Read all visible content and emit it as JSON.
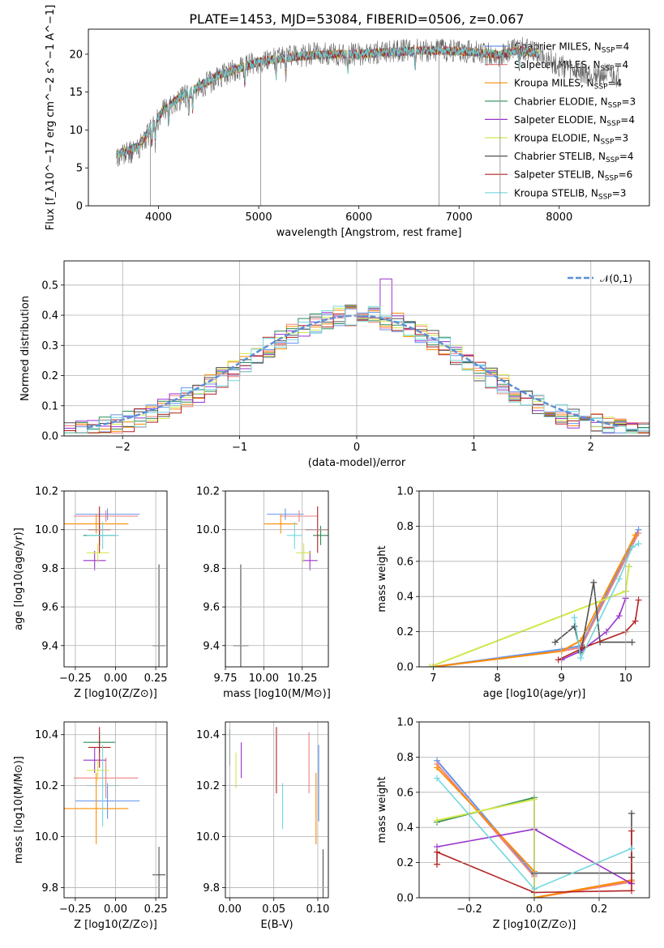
{
  "title": "PLATE=1453, MJD=53084, FIBERID=0506, z=0.067",
  "colors": {
    "Chabrier MILES": "#6495ed",
    "Salpeter MILES": "#f08080",
    "Kroupa MILES": "#ff8c00",
    "Chabrier ELODIE": "#2e8b57",
    "Salpeter ELODIE": "#9932cc",
    "Kroupa ELODIE": "#d4e84a",
    "Chabrier STELIB": "#505050",
    "Salpeter STELIB": "#b22222",
    "Kroupa STELIB": "#70d8e0"
  },
  "chart_data": [
    {
      "id": "spectrum",
      "type": "line",
      "xlabel": "wavelength [Angstrom, rest frame]",
      "ylabel": "Flux [f_λ10^−17 erg cm^−2 s^−1 A^−1]",
      "xlim": [
        3300,
        8900
      ],
      "ylim": [
        0,
        23.3
      ],
      "xticks": [
        4000,
        5000,
        6000,
        7000,
        8000
      ],
      "yticks": [
        0,
        5,
        10,
        15,
        20
      ],
      "grid": false,
      "legend": "top-right",
      "legend_entries": [
        {
          "label": "Chabrier MILES, N",
          "sub": "SSP",
          "val": "=4",
          "color": "#6495ed"
        },
        {
          "label": "Salpeter MILES, N",
          "sub": "SSP",
          "val": "=4",
          "color": "#f08080"
        },
        {
          "label": "Kroupa MILES, N",
          "sub": "SSP",
          "val": "=4",
          "color": "#ff8c00"
        },
        {
          "label": "Chabrier ELODIE, N",
          "sub": "SSP",
          "val": "=3",
          "color": "#2e8b57"
        },
        {
          "label": "Salpeter ELODIE, N",
          "sub": "SSP",
          "val": "=4",
          "color": "#9932cc"
        },
        {
          "label": "Kroupa ELODIE, N",
          "sub": "SSP",
          "val": "=3",
          "color": "#d4e84a"
        },
        {
          "label": "Chabrier STELIB, N",
          "sub": "SSP",
          "val": "=4",
          "color": "#505050"
        },
        {
          "label": "Salpeter STELIB, N",
          "sub": "SSP",
          "val": "=6",
          "color": "#b22222"
        },
        {
          "label": "Kroupa STELIB, N",
          "sub": "SSP",
          "val": "=3",
          "color": "#70d8e0"
        }
      ],
      "data_envelope": {
        "x": [
          3580,
          3800,
          3950,
          4050,
          4200,
          4400,
          4600,
          4800,
          5000,
          5200,
          5400,
          5600,
          5800,
          6000,
          6200,
          6400,
          6600,
          6800,
          7000,
          7200,
          7400,
          7600,
          7800,
          8000,
          8200,
          8400,
          8600
        ],
        "y": [
          6.5,
          7.5,
          10.5,
          12.5,
          14.0,
          15.5,
          17.0,
          18.0,
          19.0,
          19.5,
          19.8,
          20.0,
          20.0,
          20.0,
          20.2,
          20.4,
          20.6,
          20.5,
          20.5,
          20.2,
          19.8,
          20.8,
          20.0,
          18.5,
          17.5,
          17.3,
          17.0
        ]
      },
      "model_envelope": {
        "x": [
          3580,
          3800,
          3950,
          4050,
          4200,
          4400,
          4600,
          4800,
          5000,
          5200,
          5400,
          5600,
          5800,
          6000,
          6200,
          6400,
          6600,
          6800,
          7000,
          7200,
          7400,
          7600,
          7800
        ],
        "y": [
          6.8,
          7.8,
          10.8,
          12.6,
          14.2,
          15.7,
          17.2,
          18.1,
          19.0,
          19.4,
          19.7,
          19.9,
          20.0,
          20.0,
          20.2,
          20.3,
          20.5,
          20.5,
          20.4,
          20.2,
          19.9,
          20.6,
          20.0
        ]
      }
    },
    {
      "id": "residuals",
      "type": "histogram",
      "xlabel": "(data-model)/error",
      "ylabel": "Normed distribution",
      "xlim": [
        -2.5,
        2.5
      ],
      "ylim": [
        0,
        0.58
      ],
      "xticks": [
        -2,
        -1,
        0,
        1,
        2
      ],
      "yticks": [
        0.0,
        0.1,
        0.2,
        0.3,
        0.4,
        0.5
      ],
      "grid": true,
      "legend": "top-right",
      "legend_label": "𝒩(0,1)",
      "bin_width": 0.1
    },
    {
      "id": "age-vs-Z",
      "type": "errorbar",
      "xlabel": "Z [log10(Z/Z⊙)]",
      "ylabel": "age  [log10(age/yr)]",
      "xlim": [
        -0.32,
        0.32
      ],
      "ylim": [
        9.29,
        10.2
      ],
      "xticks": [
        -0.25,
        0.0,
        0.25
      ],
      "yticks": [
        9.4,
        9.6,
        9.8,
        10.0,
        10.2
      ],
      "grid": true,
      "points": [
        {
          "m": "Chabrier MILES",
          "x": -0.05,
          "xe": 0.2,
          "y": 10.08,
          "ye": 0.03
        },
        {
          "m": "Salpeter MILES",
          "x": -0.06,
          "xe": 0.2,
          "y": 10.07,
          "ye": 0.03
        },
        {
          "m": "Kroupa MILES",
          "x": -0.12,
          "xe": 0.2,
          "y": 10.03,
          "ye": 0.05
        },
        {
          "m": "Chabrier ELODIE",
          "x": -0.1,
          "xe": 0.1,
          "y": 9.97,
          "ye": 0.05
        },
        {
          "m": "Salpeter ELODIE",
          "x": -0.13,
          "xe": 0.07,
          "y": 9.84,
          "ye": 0.05
        },
        {
          "m": "Kroupa ELODIE",
          "x": -0.11,
          "xe": 0.07,
          "y": 9.88,
          "ye": 0.05
        },
        {
          "m": "Chabrier STELIB",
          "x": 0.27,
          "xe": 0.04,
          "y": 9.4,
          "ye": 0.42
        },
        {
          "m": "Salpeter STELIB",
          "x": -0.1,
          "xe": 0.07,
          "y": 10.0,
          "ye": 0.12
        },
        {
          "m": "Kroupa STELIB",
          "x": -0.08,
          "xe": 0.1,
          "y": 9.97,
          "ye": 0.07
        }
      ]
    },
    {
      "id": "age-vs-mass",
      "type": "errorbar",
      "xlabel": "mass [log10(M/M⊙)]",
      "ylabel": "",
      "xlim": [
        9.75,
        10.42
      ],
      "ylim": [
        9.29,
        10.2
      ],
      "xticks": [
        9.75,
        10.0,
        10.25
      ],
      "yticks": [
        9.4,
        9.6,
        9.8,
        10.0,
        10.2
      ],
      "grid": true,
      "points": [
        {
          "m": "Chabrier MILES",
          "x": 10.14,
          "xe": 0.12,
          "y": 10.08,
          "ye": 0.03
        },
        {
          "m": "Salpeter MILES",
          "x": 10.23,
          "xe": 0.12,
          "y": 10.07,
          "ye": 0.03
        },
        {
          "m": "Kroupa MILES",
          "x": 10.11,
          "xe": 0.11,
          "y": 10.03,
          "ye": 0.05
        },
        {
          "m": "Chabrier ELODIE",
          "x": 10.37,
          "xe": 0.05,
          "y": 9.97,
          "ye": 0.05
        },
        {
          "m": "Salpeter ELODIE",
          "x": 10.3,
          "xe": 0.05,
          "y": 9.84,
          "ye": 0.05
        },
        {
          "m": "Kroupa ELODIE",
          "x": 10.26,
          "xe": 0.05,
          "y": 9.88,
          "ye": 0.05
        },
        {
          "m": "Chabrier STELIB",
          "x": 9.85,
          "xe": 0.05,
          "y": 9.4,
          "ye": 0.42
        },
        {
          "m": "Salpeter STELIB",
          "x": 10.35,
          "xe": 0.08,
          "y": 10.0,
          "ye": 0.12
        },
        {
          "m": "Kroupa STELIB",
          "x": 10.2,
          "xe": 0.05,
          "y": 9.97,
          "ye": 0.07
        }
      ]
    },
    {
      "id": "massweight-vs-age",
      "type": "line",
      "xlabel": "age  [log10(age/yr)]",
      "ylabel": "mass weight",
      "xlim": [
        6.78,
        10.37
      ],
      "ylim": [
        0,
        1
      ],
      "xticks": [
        7,
        8,
        9,
        10
      ],
      "yticks": [
        0.0,
        0.2,
        0.4,
        0.6,
        0.8,
        1.0
      ],
      "grid": true,
      "series": [
        {
          "m": "Chabrier MILES",
          "x": [
            7.0,
            9.0,
            9.3,
            10.2
          ],
          "y": [
            0.0,
            0.1,
            0.12,
            0.78
          ]
        },
        {
          "m": "Salpeter MILES",
          "x": [
            7.0,
            9.0,
            9.3,
            10.2
          ],
          "y": [
            0.0,
            0.09,
            0.11,
            0.76
          ]
        },
        {
          "m": "Kroupa MILES",
          "x": [
            7.0,
            9.0,
            9.3,
            10.15
          ],
          "y": [
            0.0,
            0.09,
            0.15,
            0.75
          ]
        },
        {
          "m": "Chabrier ELODIE",
          "x": [
            6.95,
            10.0,
            10.05
          ],
          "y": [
            0.0,
            0.43,
            0.57
          ]
        },
        {
          "m": "Salpeter ELODIE",
          "x": [
            9.0,
            9.3,
            9.7,
            9.9,
            10.0
          ],
          "y": [
            0.04,
            0.09,
            0.2,
            0.29,
            0.39
          ]
        },
        {
          "m": "Kroupa ELODIE",
          "x": [
            6.95,
            10.0,
            10.05
          ],
          "y": [
            0.0,
            0.43,
            0.57
          ]
        },
        {
          "m": "Chabrier STELIB",
          "x": [
            8.9,
            9.2,
            9.3,
            9.5,
            9.6,
            10.1
          ],
          "y": [
            0.14,
            0.23,
            0.08,
            0.48,
            0.14,
            0.14
          ]
        },
        {
          "m": "Salpeter STELIB",
          "x": [
            8.95,
            9.35,
            10.0,
            10.15,
            10.2
          ],
          "y": [
            0.04,
            0.11,
            0.2,
            0.26,
            0.38
          ]
        },
        {
          "m": "Kroupa STELIB",
          "x": [
            9.2,
            9.3,
            9.9,
            10.1,
            10.2
          ],
          "y": [
            0.28,
            0.05,
            0.5,
            0.68,
            0.7
          ]
        }
      ]
    },
    {
      "id": "mass-vs-Z",
      "type": "errorbar",
      "xlabel": "Z [log10(Z/Z⊙)]",
      "ylabel": "mass [log10(M/M⊙)]",
      "xlim": [
        -0.32,
        0.32
      ],
      "ylim": [
        9.76,
        10.45
      ],
      "xticks": [
        -0.25,
        0.0,
        0.25
      ],
      "yticks": [
        9.8,
        10.0,
        10.2,
        10.4
      ],
      "grid": true,
      "points": [
        {
          "m": "Chabrier MILES",
          "x": -0.05,
          "xe": 0.2,
          "y": 10.14,
          "ye": 0.07
        },
        {
          "m": "Salpeter MILES",
          "x": -0.06,
          "xe": 0.2,
          "y": 10.23,
          "ye": 0.08
        },
        {
          "m": "Kroupa MILES",
          "x": -0.12,
          "xe": 0.2,
          "y": 10.11,
          "ye": 0.14
        },
        {
          "m": "Chabrier ELODIE",
          "x": -0.1,
          "xe": 0.1,
          "y": 10.37,
          "ye": 0.04
        },
        {
          "m": "Salpeter ELODIE",
          "x": -0.13,
          "xe": 0.07,
          "y": 10.3,
          "ye": 0.05
        },
        {
          "m": "Kroupa ELODIE",
          "x": -0.11,
          "xe": 0.07,
          "y": 10.26,
          "ye": 0.04
        },
        {
          "m": "Chabrier STELIB",
          "x": 0.27,
          "xe": 0.04,
          "y": 9.85,
          "ye": 0.11
        },
        {
          "m": "Salpeter STELIB",
          "x": -0.1,
          "xe": 0.07,
          "y": 10.35,
          "ye": 0.08
        },
        {
          "m": "Kroupa STELIB",
          "x": -0.08,
          "xe": 0.1,
          "y": 10.2,
          "ye": 0.16
        }
      ]
    },
    {
      "id": "mass-vs-EBV",
      "type": "errorbar",
      "xlabel": "E(B-V)",
      "ylabel": "",
      "xlim": [
        -0.005,
        0.112
      ],
      "ylim": [
        9.76,
        10.45
      ],
      "xticks": [
        0.0,
        0.05,
        0.1
      ],
      "yticks": [
        9.8,
        10.0,
        10.2,
        10.4
      ],
      "grid": true,
      "points": [
        {
          "m": "Chabrier MILES",
          "x": 0.101,
          "xe": 0,
          "y": 10.21,
          "ye": 0.15
        },
        {
          "m": "Salpeter MILES",
          "x": 0.09,
          "xe": 0,
          "y": 10.29,
          "ye": 0.12
        },
        {
          "m": "Kroupa MILES",
          "x": 0.098,
          "xe": 0,
          "y": 10.11,
          "ye": 0.14
        },
        {
          "m": "Chabrier ELODIE",
          "x": 0.0,
          "xe": 0,
          "y": 10.35,
          "ye": 0.07
        },
        {
          "m": "Salpeter ELODIE",
          "x": 0.013,
          "xe": 0,
          "y": 10.3,
          "ye": 0.07
        },
        {
          "m": "Kroupa ELODIE",
          "x": 0.007,
          "xe": 0,
          "y": 10.26,
          "ye": 0.07
        },
        {
          "m": "Chabrier STELIB",
          "x": 0.106,
          "xe": 0,
          "y": 9.85,
          "ye": 0.1
        },
        {
          "m": "Salpeter STELIB",
          "x": 0.053,
          "xe": 0,
          "y": 10.3,
          "ye": 0.13
        },
        {
          "m": "Kroupa STELIB",
          "x": 0.06,
          "xe": 0,
          "y": 10.12,
          "ye": 0.09
        }
      ]
    },
    {
      "id": "massweight-vs-Z",
      "type": "line",
      "xlabel": "Z [log10(Z/Z⊙)]",
      "ylabel": "mass weight",
      "xlim": [
        -0.355,
        0.355
      ],
      "ylim": [
        0,
        1
      ],
      "xticks": [
        -0.2,
        0.0,
        0.2
      ],
      "yticks": [
        0.0,
        0.2,
        0.4,
        0.6,
        0.8,
        1.0
      ],
      "grid": true,
      "series": [
        {
          "m": "Chabrier MILES",
          "x": [
            -0.3,
            0.0,
            0.0,
            0.3
          ],
          "y": [
            0.78,
            0.13,
            0.0,
            0.1
          ]
        },
        {
          "m": "Salpeter MILES",
          "x": [
            -0.3,
            0.0,
            0.0,
            0.3
          ],
          "y": [
            0.76,
            0.12,
            0.0,
            0.09
          ]
        },
        {
          "m": "Kroupa MILES",
          "x": [
            -0.3,
            0.0,
            0.0,
            0.3
          ],
          "y": [
            0.74,
            0.15,
            0.0,
            0.1
          ]
        },
        {
          "m": "Chabrier ELODIE",
          "x": [
            -0.3,
            0.0,
            0.0
          ],
          "y": [
            0.43,
            0.57,
            0.0
          ]
        },
        {
          "m": "Salpeter ELODIE",
          "x": [
            -0.3,
            0.0,
            0.3
          ],
          "y": [
            0.29,
            0.39,
            0.08
          ]
        },
        {
          "m": "Kroupa ELODIE",
          "x": [
            -0.3,
            0.0,
            0.0
          ],
          "y": [
            0.44,
            0.56,
            0.0
          ]
        },
        {
          "m": "Chabrier STELIB",
          "x": [
            0.0,
            0.3,
            0.3,
            0.3
          ],
          "y": [
            0.14,
            0.14,
            0.48,
            0.23
          ]
        },
        {
          "m": "Salpeter STELIB",
          "x": [
            -0.3,
            -0.3,
            0.0,
            0.3,
            0.3
          ],
          "y": [
            0.19,
            0.26,
            0.03,
            0.04,
            0.38
          ]
        },
        {
          "m": "Kroupa STELIB",
          "x": [
            -0.3,
            0.0,
            0.3
          ],
          "y": [
            0.68,
            0.05,
            0.28
          ]
        }
      ]
    }
  ]
}
